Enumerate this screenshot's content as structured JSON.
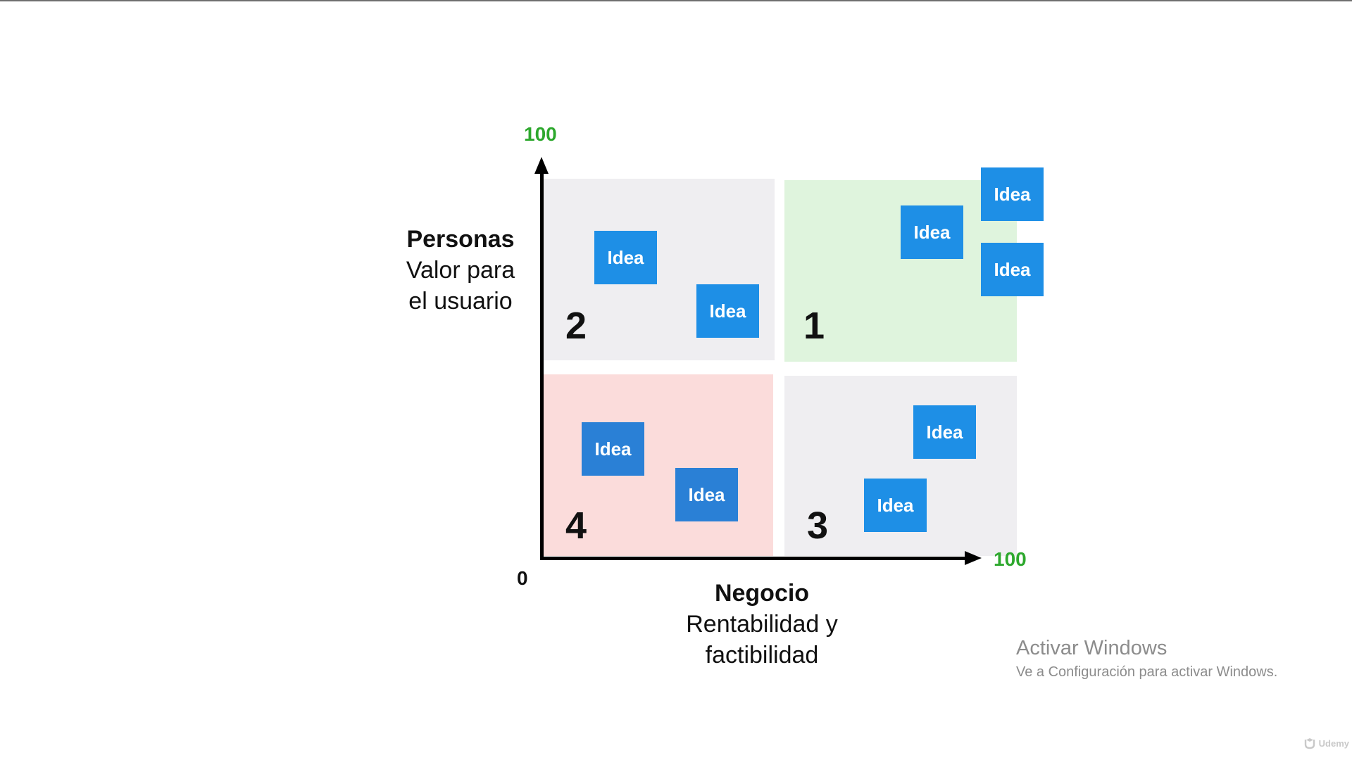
{
  "diagram": {
    "y_axis": {
      "max_label": "100",
      "title": "Personas",
      "subtitle_lines": [
        "Valor para",
        "el usuario"
      ]
    },
    "x_axis": {
      "max_label": "100",
      "title": "Negocio",
      "subtitle_lines": [
        "Rentabilidad y",
        "factibilidad"
      ]
    },
    "origin_label": "0",
    "idea_label": "Idea",
    "quadrants": [
      {
        "number": "1",
        "color": "#dff4dd"
      },
      {
        "number": "2",
        "color": "#efeef1"
      },
      {
        "number": "3",
        "color": "#efeef1"
      },
      {
        "number": "4",
        "color": "#fbdcdb"
      }
    ],
    "colors": {
      "idea_fill": "#1e8fe6",
      "axis_max_label": "#2da82d"
    }
  },
  "watermark": {
    "title": "Activar Windows",
    "subtitle": "Ve a Configuración para activar Windows."
  },
  "brand": {
    "name": "Udemy"
  }
}
